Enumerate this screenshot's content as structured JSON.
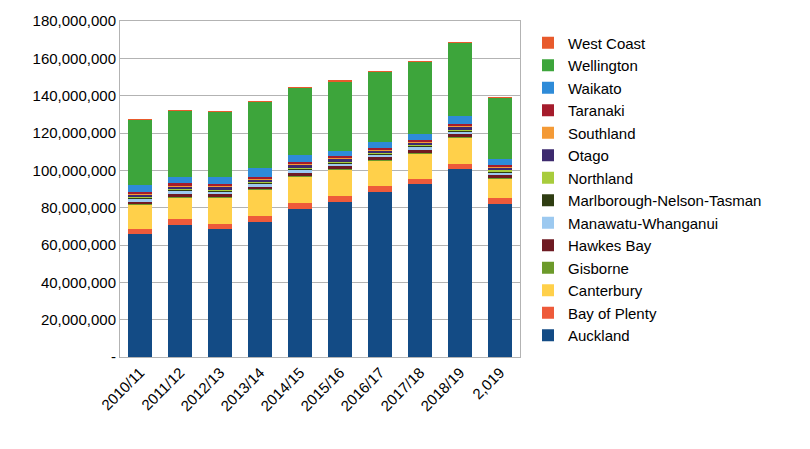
{
  "chart_data": {
    "type": "bar",
    "stacked": true,
    "grid": true,
    "legend": "right",
    "categories": [
      "2010/11",
      "2011/12",
      "2012/13",
      "2013/14",
      "2014/15",
      "2015/16",
      "2016/17",
      "2017/18",
      "2018/19",
      "2,019"
    ],
    "ylim": [
      0,
      180000000
    ],
    "yticks": [
      {
        "value": 0,
        "label": "-"
      },
      {
        "value": 20000000,
        "label": "20,000,000"
      },
      {
        "value": 40000000,
        "label": "40,000,000"
      },
      {
        "value": 60000000,
        "label": "60,000,000"
      },
      {
        "value": 80000000,
        "label": "80,000,000"
      },
      {
        "value": 100000000,
        "label": "100,000,000"
      },
      {
        "value": 120000000,
        "label": "120,000,000"
      },
      {
        "value": 140000000,
        "label": "140,000,000"
      },
      {
        "value": 160000000,
        "label": "160,000,000"
      },
      {
        "value": 180000000,
        "label": "180,000,000"
      }
    ],
    "series": [
      {
        "name": "Auckland",
        "color": "#134b85",
        "values": [
          66000000,
          70500000,
          68500000,
          72500000,
          79500000,
          83000000,
          88500000,
          92500000,
          100500000,
          82000000
        ]
      },
      {
        "name": "Bay of Plenty",
        "color": "#ee5a3a",
        "values": [
          2500000,
          3500000,
          3000000,
          3000000,
          3000000,
          3500000,
          3000000,
          3000000,
          3000000,
          3000000
        ]
      },
      {
        "name": "Canterbury",
        "color": "#ffd04a",
        "values": [
          13000000,
          11500000,
          14000000,
          14000000,
          14000000,
          14000000,
          14000000,
          13500000,
          14000000,
          10500000
        ]
      },
      {
        "name": "Gisborne",
        "color": "#6c9a2a",
        "values": [
          300000,
          300000,
          300000,
          300000,
          300000,
          300000,
          300000,
          300000,
          300000,
          300000
        ]
      },
      {
        "name": "Hawkes Bay",
        "color": "#6e1a22",
        "values": [
          1500000,
          1600000,
          1500000,
          1500000,
          1800000,
          1500000,
          1400000,
          1600000,
          1500000,
          1600000
        ]
      },
      {
        "name": "Manawatu-Whanganui",
        "color": "#9cc9f0",
        "values": [
          1500000,
          1600000,
          1500000,
          1500000,
          1700000,
          1500000,
          1300000,
          1600000,
          1300000,
          1600000
        ]
      },
      {
        "name": "Marlborough-Nelson-Tasman",
        "color": "#2f3d12",
        "values": [
          500000,
          600000,
          500000,
          500000,
          600000,
          500000,
          500000,
          600000,
          600000,
          600000
        ]
      },
      {
        "name": "Northland",
        "color": "#a8cc3c",
        "values": [
          400000,
          400000,
          400000,
          400000,
          500000,
          400000,
          400000,
          400000,
          400000,
          400000
        ]
      },
      {
        "name": "Otago",
        "color": "#3d2a6e",
        "values": [
          1500000,
          1600000,
          1500000,
          1500000,
          1800000,
          1500000,
          1400000,
          1600000,
          2000000,
          1600000
        ]
      },
      {
        "name": "Southland",
        "color": "#f49a36",
        "values": [
          500000,
          500000,
          500000,
          500000,
          500000,
          500000,
          500000,
          500000,
          500000,
          500000
        ]
      },
      {
        "name": "Taranaki",
        "color": "#a51c2c",
        "values": [
          800000,
          900000,
          800000,
          800000,
          800000,
          800000,
          700000,
          900000,
          900000,
          900000
        ]
      },
      {
        "name": "Waikato",
        "color": "#2e8bd8",
        "values": [
          3500000,
          3500000,
          4000000,
          4500000,
          3500000,
          3000000,
          3000000,
          3000000,
          4000000,
          3000000
        ]
      },
      {
        "name": "Wellington",
        "color": "#3da53b",
        "values": [
          35300000,
          35300000,
          34800000,
          35800000,
          36300000,
          37300000,
          37800000,
          38800000,
          39300000,
          32800000
        ]
      },
      {
        "name": "West Coast",
        "color": "#e85a2c",
        "values": [
          200000,
          200000,
          200000,
          200000,
          200000,
          200000,
          200000,
          200000,
          200000,
          200000
        ]
      }
    ]
  }
}
